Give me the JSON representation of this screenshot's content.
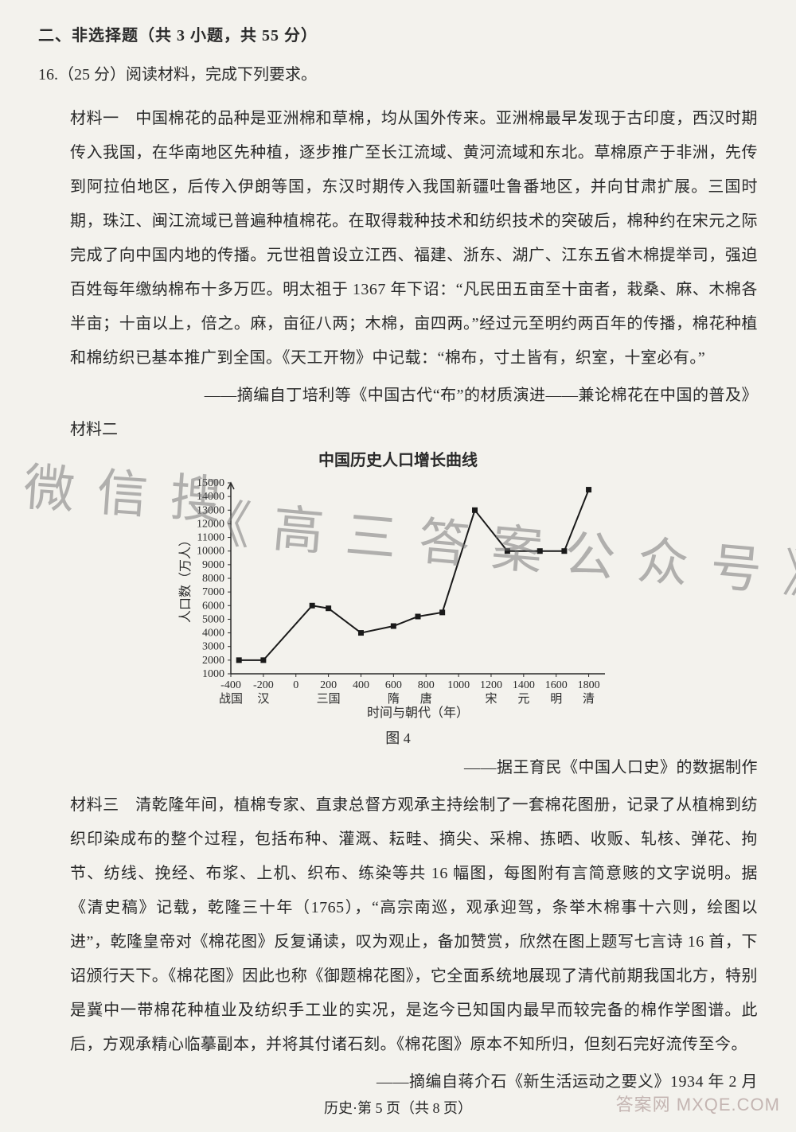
{
  "section_heading": "二、非选择题（共 3 小题，共 55 分）",
  "question_line": "16.（25 分）阅读材料，完成下列要求。",
  "material1": "材料一　中国棉花的品种是亚洲棉和草棉，均从国外传来。亚洲棉最早发现于古印度，西汉时期传入我国，在华南地区先种植，逐步推广至长江流域、黄河流域和东北。草棉原产于非洲，先传到阿拉伯地区，后传入伊朗等国，东汉时期传入我国新疆吐鲁番地区，并向甘肃扩展。三国时期，珠江、闽江流域已普遍种植棉花。在取得栽种技术和纺织技术的突破后，棉种约在宋元之际完成了向中国内地的传播。元世祖曾设立江西、福建、浙东、湖广、江东五省木棉提举司，强迫百姓每年缴纳棉布十多万匹。明太祖于 1367 年下诏：“凡民田五亩至十亩者，栽桑、麻、木棉各半亩；十亩以上，倍之。麻，亩征八两；木棉，亩四两。”经过元至明约两百年的传播，棉花种植和棉纺织已基本推广到全国。《天工开物》中记载：“棉布，寸土皆有，织室，十室必有。”",
  "source1": "——摘编自丁培利等《中国古代“布”的材质演进——兼论棉花在中国的普及》",
  "material2_label": "材料二",
  "chart": {
    "type": "line",
    "title": "中国历史人口增长曲线",
    "ylabel": "人口数（万人）",
    "xlabel": "时间与朝代（年）",
    "fig_label": "图 4",
    "xlim": [
      -400,
      1900
    ],
    "ylim": [
      1000,
      15000
    ],
    "ytick_step": 1000,
    "yticks": [
      1000,
      2000,
      3000,
      4000,
      5000,
      6000,
      7000,
      8000,
      9000,
      10000,
      11000,
      12000,
      13000,
      14000,
      15000
    ],
    "xticks_top": [
      "-400",
      "-200",
      "0",
      "200",
      "400",
      "600",
      "800",
      "1000",
      "1200",
      "1400",
      "1600",
      "1800"
    ],
    "xticks_bottom": [
      "战国",
      "汉",
      "",
      "三国",
      "",
      "隋",
      "唐",
      "",
      "宋",
      "元",
      "明",
      "清"
    ],
    "line_color": "#1a1a1a",
    "line_width": 2,
    "marker": "square",
    "marker_size": 7,
    "marker_color": "#1a1a1a",
    "background_color": "#f3f2ed",
    "axis_color": "#2a2a2a",
    "tick_fontsize": 14,
    "label_fontsize": 16,
    "points": [
      {
        "x": -350,
        "y": 2000
      },
      {
        "x": -200,
        "y": 2000
      },
      {
        "x": 100,
        "y": 6000
      },
      {
        "x": 200,
        "y": 5800
      },
      {
        "x": 400,
        "y": 4000
      },
      {
        "x": 600,
        "y": 4500
      },
      {
        "x": 750,
        "y": 5200
      },
      {
        "x": 900,
        "y": 5500
      },
      {
        "x": 1100,
        "y": 13000
      },
      {
        "x": 1300,
        "y": 10000
      },
      {
        "x": 1500,
        "y": 10000
      },
      {
        "x": 1650,
        "y": 10000
      },
      {
        "x": 1800,
        "y": 14500
      }
    ]
  },
  "source2": "——据王育民《中国人口史》的数据制作",
  "material3": "材料三　清乾隆年间，植棉专家、直隶总督方观承主持绘制了一套棉花图册，记录了从植棉到纺织印染成布的整个过程，包括布种、灌溉、耘畦、摘尖、采棉、拣晒、收贩、轧核、弹花、拘节、纺线、挽经、布浆、上机、织布、练染等共 16 幅图，每图附有言简意赅的文字说明。据《清史稿》记载，乾隆三十年（1765），“高宗南巡，观承迎驾，条举木棉事十六则，绘图以进”，乾隆皇帝对《棉花图》反复诵读，叹为观止，备加赞赏，欣然在图上题写七言诗 16 首，下诏颁行天下。《棉花图》因此也称《御题棉花图》，它全面系统地展现了清代前期我国北方，特别是冀中一带棉花种植业及纺织手工业的实况，是迄今已知国内最早而较完备的棉作学图谱。此后，方观承精心临摹副本，并将其付诸石刻。《棉花图》原本不知所归，但刻石完好流传至今。",
  "source3": "——摘编自蒋介石《新生活运动之要义》1934 年 2 月",
  "footer": "历史·第 5 页（共 8 页）",
  "watermark": {
    "line1": "微 信 搜",
    "line2": "《 高 三 答 案 公 众 号 》"
  },
  "corner": "答案网\nMXQE.COM"
}
